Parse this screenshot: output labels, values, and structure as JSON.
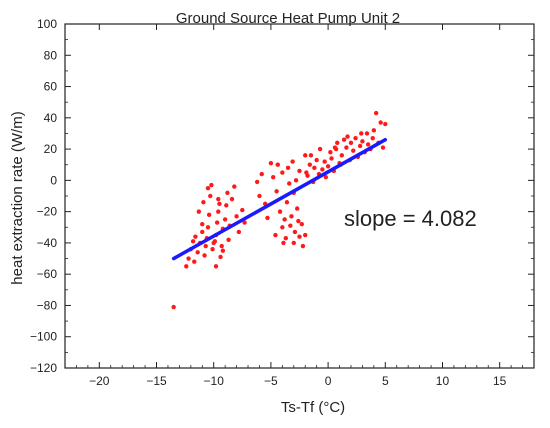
{
  "chart_data": {
    "type": "scatter",
    "title": "Ground Source Heat Pump Unit 2",
    "xlabel": "Ts-Tf (°C)",
    "ylabel": "heat extraction rate (W/m)",
    "xlim": [
      -23,
      18
    ],
    "ylim": [
      -120,
      100
    ],
    "x_ticks": [
      -20,
      -15,
      -10,
      -5,
      0,
      5,
      10,
      15
    ],
    "y_ticks": [
      -120,
      -100,
      -80,
      -60,
      -40,
      -20,
      0,
      20,
      40,
      60,
      80,
      100
    ],
    "annotation": "slope = 4.082",
    "grid": false,
    "legend": "none",
    "colors": {
      "points": "#ff1a1a",
      "fit_line": "#1a1aff",
      "axes": "#222222"
    },
    "series": [
      {
        "kind": "points",
        "points": [
          [
            -13.5,
            -81
          ],
          [
            -12.4,
            -55
          ],
          [
            -12.2,
            -50
          ],
          [
            -12.0,
            -44
          ],
          [
            -11.8,
            -39
          ],
          [
            -11.6,
            -36
          ],
          [
            -11.7,
            -52
          ],
          [
            -11.4,
            -46
          ],
          [
            -11.2,
            -40
          ],
          [
            -11.0,
            -33
          ],
          [
            -11.0,
            -28
          ],
          [
            -10.8,
            -48
          ],
          [
            -10.6,
            -37
          ],
          [
            -10.5,
            -30
          ],
          [
            -10.4,
            -22
          ],
          [
            -10.5,
            -5
          ],
          [
            -10.3,
            -10
          ],
          [
            -10.2,
            -3
          ],
          [
            -10.1,
            -44
          ],
          [
            -9.9,
            -39
          ],
          [
            -9.8,
            -35
          ],
          [
            -9.7,
            -27
          ],
          [
            -9.6,
            -20
          ],
          [
            -9.5,
            -15
          ],
          [
            -9.4,
            -49
          ],
          [
            -9.3,
            -42
          ],
          [
            -9.2,
            -31
          ],
          [
            -9.0,
            -25
          ],
          [
            -8.9,
            -16
          ],
          [
            -8.8,
            -8
          ],
          [
            -8.7,
            -38
          ],
          [
            -8.6,
            -29
          ],
          [
            -8.4,
            -12
          ],
          [
            -8.2,
            -4
          ],
          [
            -8.0,
            -23
          ],
          [
            -7.8,
            -33
          ],
          [
            -7.5,
            -19
          ],
          [
            -7.3,
            -27
          ],
          [
            -11.3,
            -20
          ],
          [
            -10.9,
            -14
          ],
          [
            -9.8,
            -55
          ],
          [
            -9.6,
            -12
          ],
          [
            -10.7,
            -42
          ],
          [
            -10.0,
            -40
          ],
          [
            -9.2,
            -45
          ],
          [
            -5.0,
            11
          ],
          [
            -4.8,
            2
          ],
          [
            -4.5,
            -7
          ],
          [
            -4.4,
            10
          ],
          [
            -4.2,
            -20
          ],
          [
            -4.0,
            -30
          ],
          [
            -4.0,
            5
          ],
          [
            -3.8,
            -25
          ],
          [
            -3.7,
            -37
          ],
          [
            -3.6,
            -14
          ],
          [
            -3.5,
            8
          ],
          [
            -3.4,
            -2
          ],
          [
            -3.3,
            -29
          ],
          [
            -3.2,
            -23
          ],
          [
            -3.1,
            12
          ],
          [
            -3.0,
            -40
          ],
          [
            -3.0,
            -8
          ],
          [
            -2.9,
            -33
          ],
          [
            -2.8,
            0
          ],
          [
            -2.7,
            -18
          ],
          [
            -2.6,
            -26
          ],
          [
            -2.5,
            6
          ],
          [
            -2.5,
            -36
          ],
          [
            -2.3,
            -28
          ],
          [
            -2.2,
            -42
          ],
          [
            -2.0,
            -35
          ],
          [
            -5.5,
            -15
          ],
          [
            -5.3,
            -24
          ],
          [
            -6.0,
            -10
          ],
          [
            -6.2,
            -1
          ],
          [
            -5.8,
            4
          ],
          [
            -4.6,
            -35
          ],
          [
            -3.9,
            -40
          ],
          [
            -1.8,
            3
          ],
          [
            -1.6,
            10
          ],
          [
            -1.5,
            16
          ],
          [
            -1.3,
            -1
          ],
          [
            -1.2,
            8
          ],
          [
            -1.0,
            13
          ],
          [
            -0.8,
            4
          ],
          [
            -0.7,
            20
          ],
          [
            -0.5,
            7
          ],
          [
            -0.3,
            12
          ],
          [
            -0.2,
            2
          ],
          [
            0.0,
            9
          ],
          [
            0.2,
            18
          ],
          [
            0.3,
            14
          ],
          [
            0.5,
            6
          ],
          [
            0.7,
            20
          ],
          [
            0.8,
            24
          ],
          [
            1.0,
            11
          ],
          [
            1.2,
            16
          ],
          [
            1.4,
            26
          ],
          [
            1.6,
            21
          ],
          [
            1.7,
            28
          ],
          [
            1.9,
            13
          ],
          [
            2.0,
            24
          ],
          [
            2.2,
            19
          ],
          [
            2.4,
            27
          ],
          [
            2.6,
            15
          ],
          [
            2.8,
            22
          ],
          [
            3.0,
            25
          ],
          [
            3.2,
            18
          ],
          [
            3.4,
            30
          ],
          [
            3.5,
            23
          ],
          [
            3.7,
            20
          ],
          [
            3.9,
            27
          ],
          [
            4.0,
            32
          ],
          [
            4.2,
            43
          ],
          [
            4.4,
            24
          ],
          [
            4.6,
            37
          ],
          [
            4.8,
            21
          ],
          [
            5.0,
            36
          ],
          [
            -2.0,
            16
          ],
          [
            -1.9,
            5
          ],
          [
            0.6,
            21
          ],
          [
            1.1,
            10
          ],
          [
            2.9,
            30
          ]
        ]
      },
      {
        "kind": "fit-line",
        "points": [
          [
            -13.5,
            -50
          ],
          [
            5.0,
            26
          ]
        ]
      }
    ]
  }
}
